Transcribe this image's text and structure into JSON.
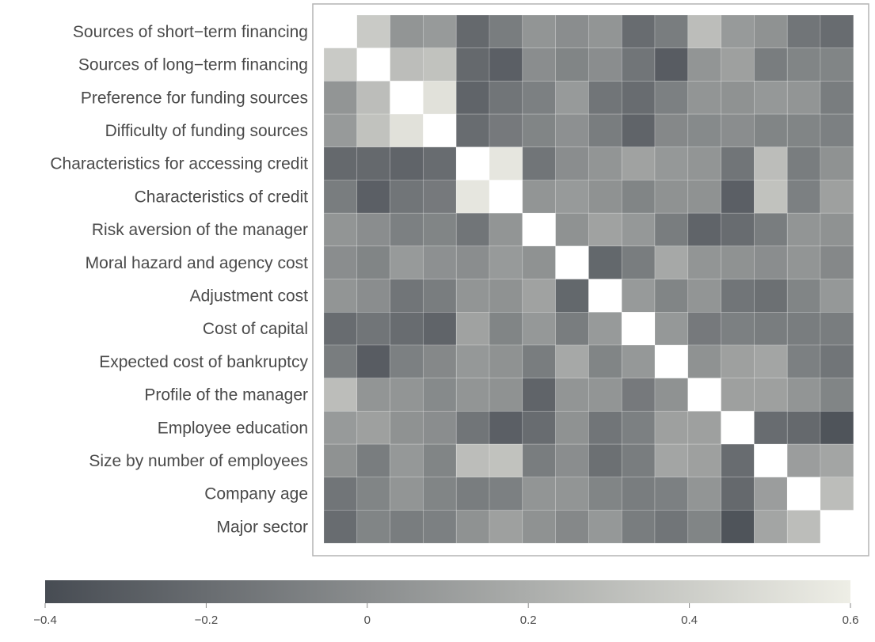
{
  "chart_data": {
    "type": "heatmap",
    "title": "",
    "variables": [
      "Sources of short−term financing",
      "Sources of long−term financing",
      "Preference for funding sources",
      "Difficulty of funding sources",
      "Characteristics for accessing credit",
      "Characteristics of credit",
      "Risk aversion of the manager",
      "Moral hazard and agency cost",
      "Adjustment cost",
      "Cost of capital",
      "Expected cost of bankruptcy",
      "Profile of the manager",
      "Employee education",
      "Size by number of employees",
      "Company age",
      "Major sector"
    ],
    "matrix": [
      [
        1.0,
        0.38,
        0.05,
        0.08,
        -0.22,
        -0.1,
        0.05,
        0.0,
        0.05,
        -0.2,
        -0.1,
        0.3,
        0.08,
        0.03,
        -0.15,
        -0.2
      ],
      [
        0.38,
        1.0,
        0.3,
        0.33,
        -0.22,
        -0.28,
        0.0,
        -0.05,
        0.0,
        -0.15,
        -0.3,
        0.05,
        0.12,
        -0.1,
        -0.05,
        -0.05
      ],
      [
        0.05,
        0.3,
        1.0,
        0.52,
        -0.25,
        -0.15,
        -0.08,
        0.08,
        -0.15,
        -0.2,
        -0.08,
        0.05,
        0.03,
        0.07,
        0.05,
        -0.1
      ],
      [
        0.08,
        0.33,
        0.52,
        1.0,
        -0.2,
        -0.12,
        -0.05,
        0.02,
        -0.1,
        -0.25,
        -0.03,
        -0.02,
        0.0,
        -0.05,
        -0.05,
        -0.08
      ],
      [
        -0.22,
        -0.22,
        -0.25,
        -0.2,
        1.0,
        0.55,
        -0.15,
        0.0,
        0.05,
        0.13,
        0.07,
        0.05,
        -0.15,
        0.3,
        -0.1,
        0.03
      ],
      [
        -0.1,
        -0.28,
        -0.15,
        -0.12,
        0.55,
        1.0,
        0.05,
        0.08,
        0.03,
        -0.05,
        0.03,
        0.03,
        -0.28,
        0.33,
        -0.08,
        0.12
      ],
      [
        0.05,
        0.0,
        -0.08,
        -0.05,
        -0.15,
        0.05,
        1.0,
        0.03,
        0.13,
        0.07,
        -0.1,
        -0.25,
        -0.2,
        -0.1,
        0.05,
        0.03
      ],
      [
        0.0,
        -0.05,
        0.08,
        0.02,
        0.0,
        0.08,
        0.03,
        1.0,
        -0.23,
        -0.1,
        0.17,
        0.05,
        0.03,
        0.0,
        0.05,
        -0.03
      ],
      [
        0.05,
        0.0,
        -0.15,
        -0.1,
        0.05,
        0.03,
        0.13,
        -0.23,
        1.0,
        0.08,
        -0.05,
        0.05,
        -0.15,
        -0.18,
        -0.05,
        0.07
      ],
      [
        -0.2,
        -0.15,
        -0.2,
        -0.25,
        0.13,
        -0.05,
        0.07,
        -0.1,
        0.08,
        1.0,
        0.07,
        -0.12,
        -0.08,
        -0.1,
        -0.1,
        -0.1
      ],
      [
        -0.1,
        -0.3,
        -0.08,
        -0.03,
        0.07,
        0.03,
        -0.1,
        0.17,
        -0.05,
        0.07,
        1.0,
        0.03,
        0.12,
        0.15,
        -0.08,
        -0.15
      ],
      [
        0.3,
        0.05,
        0.05,
        -0.02,
        0.05,
        0.03,
        -0.25,
        0.05,
        0.05,
        -0.12,
        0.03,
        1.0,
        0.12,
        0.12,
        0.05,
        -0.05
      ],
      [
        0.08,
        0.12,
        0.03,
        0.0,
        -0.15,
        -0.28,
        -0.2,
        0.03,
        -0.15,
        -0.08,
        0.12,
        0.12,
        1.0,
        -0.2,
        -0.22,
        -0.35
      ],
      [
        0.03,
        -0.1,
        0.07,
        -0.05,
        0.3,
        0.33,
        -0.1,
        0.0,
        -0.18,
        -0.1,
        0.15,
        0.12,
        -0.2,
        1.0,
        0.1,
        0.15
      ],
      [
        -0.15,
        -0.05,
        0.05,
        -0.05,
        -0.1,
        -0.08,
        0.05,
        0.05,
        -0.05,
        -0.1,
        -0.08,
        0.05,
        -0.22,
        0.1,
        1.0,
        0.3
      ],
      [
        -0.2,
        -0.05,
        -0.1,
        -0.08,
        0.03,
        0.12,
        0.03,
        -0.03,
        0.07,
        -0.1,
        -0.15,
        -0.05,
        -0.35,
        0.15,
        0.3,
        1.0
      ]
    ],
    "colorbar": {
      "min": -0.4,
      "max": 0.6,
      "ticks": [
        -0.4,
        -0.2,
        0,
        0.2,
        0.4,
        0.6
      ],
      "tick_labels": [
        "−0.4",
        "−0.2",
        "0",
        "0.2",
        "0.4",
        "0.6"
      ],
      "color_low": "#474c53",
      "color_high": "#eeeee6",
      "color_max": "#ffffff"
    },
    "grid": false,
    "legend_position": "bottom"
  }
}
